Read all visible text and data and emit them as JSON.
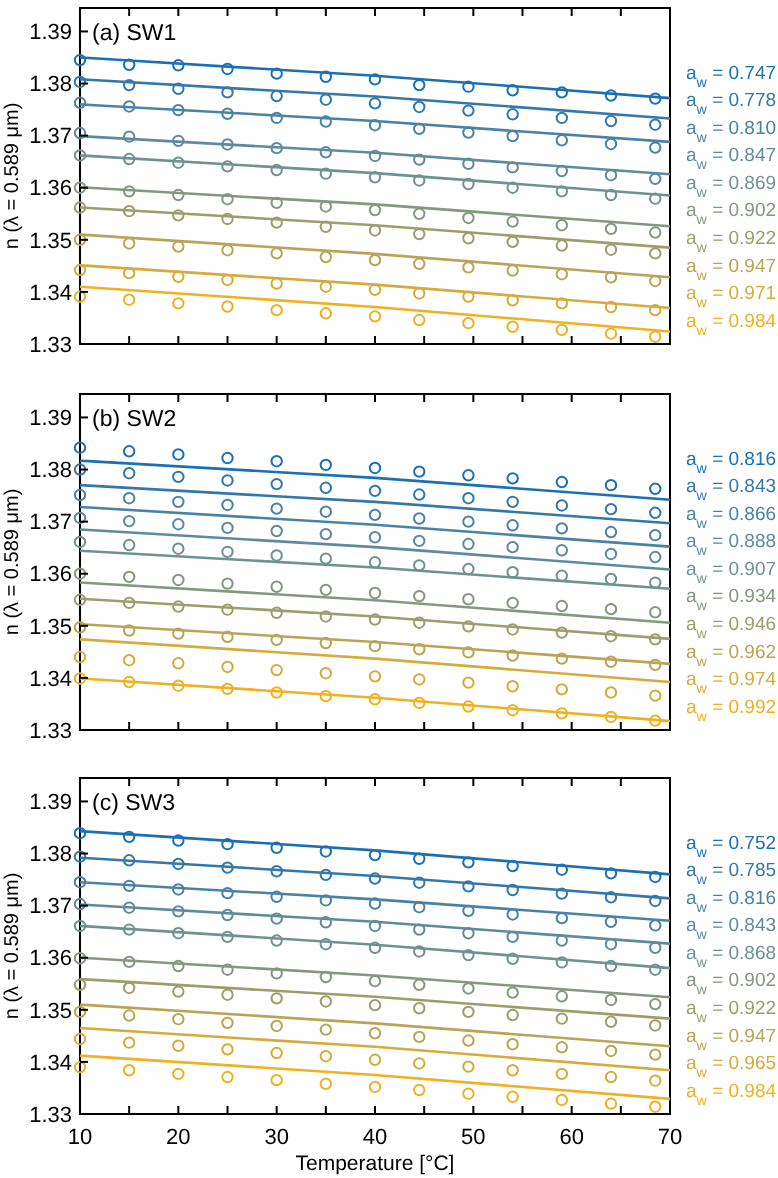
{
  "chart_data": [
    {
      "type": "line",
      "title": "(a) SW1",
      "ylabel": "n (λ = 0.589 μm)",
      "xlim": [
        10,
        70
      ],
      "ylim": [
        1.33,
        1.3945
      ],
      "xticks": [
        10,
        {
          "value": 15,
          "label": null
        },
        20,
        {
          "value": 25,
          "label": null
        },
        30,
        {
          "value": 35,
          "label": null
        },
        40,
        {
          "value": 45,
          "label": null
        },
        50,
        {
          "value": 55,
          "label": null
        },
        60,
        {
          "value": 65,
          "label": null
        },
        70
      ],
      "yticks": [
        1.33,
        1.34,
        1.35,
        1.36,
        1.37,
        1.38,
        1.39
      ],
      "tick_labels": "y",
      "legend": "right",
      "x": [
        10,
        15,
        20,
        25,
        30,
        35,
        40,
        44.5,
        49.5,
        54,
        59,
        64,
        68.5
      ],
      "series": [
        {
          "name": "a$_{w}$ = 0.747",
          "color": "#1a70b5",
          "x": [
            10,
            40,
            70
          ],
          "values": [
            1.385,
            1.3815,
            1.3772
          ]
        },
        {
          "name": "a$_{w}$ = 0.778",
          "color": "#3278ad",
          "x": [
            10,
            40,
            70
          ],
          "values": [
            1.3808,
            1.3775,
            1.3733
          ]
        },
        {
          "name": "a$_{w}$ = 0.810",
          "color": "#4a82a5",
          "x": [
            10,
            40,
            70
          ],
          "values": [
            1.376,
            1.3728,
            1.3688
          ]
        },
        {
          "name": "a$_{w}$ = 0.847",
          "color": "#5f8a9b",
          "x": [
            10,
            40,
            70
          ],
          "values": [
            1.3699,
            1.3667,
            1.3626
          ]
        },
        {
          "name": "a$_{w}$ = 0.869",
          "color": "#6f9290",
          "x": [
            10,
            40,
            70
          ],
          "values": [
            1.3662,
            1.3628,
            1.3585
          ]
        },
        {
          "name": "a$_{w}$ = 0.902",
          "color": "#84987f",
          "x": [
            10,
            40,
            70
          ],
          "values": [
            1.3601,
            1.3568,
            1.3526
          ]
        },
        {
          "name": "a$_{w}$ = 0.922",
          "color": "#9c9d6b",
          "x": [
            10,
            40,
            70
          ],
          "values": [
            1.3562,
            1.3528,
            1.3485
          ]
        },
        {
          "name": "a$_{w}$ = 0.947",
          "color": "#b9a455",
          "x": [
            10,
            40,
            70
          ],
          "values": [
            1.351,
            1.3473,
            1.3428
          ]
        },
        {
          "name": "a$_{w}$ = 0.971",
          "color": "#d6ab3c",
          "x": [
            10,
            40,
            70
          ],
          "values": [
            1.3451,
            1.3414,
            1.3369
          ]
        },
        {
          "name": "a$_{w}$ = 0.984",
          "color": "#f0b020",
          "x": [
            10,
            40,
            70
          ],
          "values": [
            1.341,
            1.3371,
            1.3324
          ]
        },
        {
          "type": "scatter",
          "marker": "circle",
          "color": "#1a70b5",
          "values": [
            1.3845,
            1.3836,
            1.3835,
            1.3828,
            1.3819,
            1.3813,
            1.3808,
            1.3797,
            1.3794,
            1.3787,
            1.3783,
            1.3777,
            1.3771
          ]
        },
        {
          "type": "scatter",
          "marker": "circle",
          "color": "#3278ad",
          "values": [
            1.3803,
            1.3797,
            1.379,
            1.3783,
            1.3776,
            1.3769,
            1.3762,
            1.3755,
            1.3748,
            1.3741,
            1.3734,
            1.3728,
            1.3721
          ]
        },
        {
          "type": "scatter",
          "marker": "circle",
          "color": "#4a82a5",
          "values": [
            1.3763,
            1.3756,
            1.3749,
            1.3742,
            1.3734,
            1.3727,
            1.372,
            1.3713,
            1.3706,
            1.3699,
            1.3691,
            1.3684,
            1.3677
          ]
        },
        {
          "type": "scatter",
          "marker": "circle",
          "color": "#5f8a9b",
          "values": [
            1.3705,
            1.3698,
            1.369,
            1.3683,
            1.3676,
            1.3668,
            1.3661,
            1.3654,
            1.3646,
            1.3639,
            1.3632,
            1.3624,
            1.3617
          ]
        },
        {
          "type": "scatter",
          "marker": "circle",
          "color": "#6f9290",
          "values": [
            1.3662,
            1.3655,
            1.3648,
            1.3641,
            1.3634,
            1.3627,
            1.362,
            1.3614,
            1.3607,
            1.36,
            1.3593,
            1.3586,
            1.3579
          ]
        },
        {
          "type": "scatter",
          "marker": "circle",
          "color": "#84987f",
          "values": [
            1.36,
            1.3593,
            1.3586,
            1.3578,
            1.3571,
            1.3564,
            1.3557,
            1.355,
            1.3542,
            1.3535,
            1.3528,
            1.3521,
            1.3514
          ]
        },
        {
          "type": "scatter",
          "marker": "circle",
          "color": "#9c9d6b",
          "values": [
            1.3562,
            1.3555,
            1.3547,
            1.354,
            1.3533,
            1.3525,
            1.3518,
            1.3511,
            1.3503,
            1.3496,
            1.3489,
            1.3481,
            1.3474
          ]
        },
        {
          "type": "scatter",
          "marker": "circle",
          "color": "#b9a455",
          "values": [
            1.35,
            1.3493,
            1.3487,
            1.348,
            1.3474,
            1.3467,
            1.3461,
            1.3454,
            1.3447,
            1.3441,
            1.3434,
            1.3428,
            1.3421
          ]
        },
        {
          "type": "scatter",
          "marker": "circle",
          "color": "#d6ab3c",
          "values": [
            1.3442,
            1.3436,
            1.3429,
            1.3423,
            1.3416,
            1.341,
            1.3404,
            1.3397,
            1.3391,
            1.3384,
            1.3378,
            1.3371,
            1.3365
          ]
        },
        {
          "type": "scatter",
          "marker": "circle",
          "color": "#f0b020",
          "values": [
            1.3391,
            1.3385,
            1.3378,
            1.3372,
            1.3365,
            1.3359,
            1.3353,
            1.3346,
            1.334,
            1.3333,
            1.3327,
            1.332,
            1.3314
          ]
        }
      ]
    },
    {
      "type": "line",
      "title": "(b) SW2",
      "ylabel": "n (λ = 0.589 μm)",
      "xlim": [
        10,
        70
      ],
      "ylim": [
        1.33,
        1.3945
      ],
      "xticks": [
        10,
        {
          "value": 15,
          "label": null
        },
        20,
        {
          "value": 25,
          "label": null
        },
        30,
        {
          "value": 35,
          "label": null
        },
        40,
        {
          "value": 45,
          "label": null
        },
        50,
        {
          "value": 55,
          "label": null
        },
        60,
        {
          "value": 65,
          "label": null
        },
        70
      ],
      "yticks": [
        1.33,
        1.34,
        1.35,
        1.36,
        1.37,
        1.38,
        1.39
      ],
      "tick_labels": "y",
      "legend": "right",
      "x": [
        10,
        15,
        20,
        25,
        30,
        35,
        40,
        44.5,
        49.5,
        54,
        59,
        64,
        68.5
      ],
      "series": [
        {
          "name": "a$_{w}$ = 0.816",
          "color": "#1a70b5",
          "x": [
            10,
            40,
            70
          ],
          "values": [
            1.3817,
            1.3784,
            1.3742
          ]
        },
        {
          "name": "a$_{w}$ = 0.843",
          "color": "#3278ad",
          "x": [
            10,
            40,
            70
          ],
          "values": [
            1.377,
            1.3738,
            1.3697
          ]
        },
        {
          "name": "a$_{w}$ = 0.866",
          "color": "#4a82a5",
          "x": [
            10,
            40,
            70
          ],
          "values": [
            1.3728,
            1.3694,
            1.3652
          ]
        },
        {
          "name": "a$_{w}$ = 0.888",
          "color": "#5f8a9b",
          "x": [
            10,
            40,
            70
          ],
          "values": [
            1.3685,
            1.3651,
            1.3608
          ]
        },
        {
          "name": "a$_{w}$ = 0.907",
          "color": "#6f9290",
          "x": [
            10,
            40,
            70
          ],
          "values": [
            1.3644,
            1.3612,
            1.3571
          ]
        },
        {
          "name": "a$_{w}$ = 0.934",
          "color": "#84987f",
          "x": [
            10,
            40,
            70
          ],
          "values": [
            1.3583,
            1.3549,
            1.3506
          ]
        },
        {
          "name": "a$_{w}$ = 0.946",
          "color": "#9c9d6b",
          "x": [
            10,
            40,
            70
          ],
          "values": [
            1.3552,
            1.3518,
            1.3475
          ]
        },
        {
          "name": "a$_{w}$ = 0.962",
          "color": "#b9a455",
          "x": [
            10,
            40,
            70
          ],
          "values": [
            1.3503,
            1.3469,
            1.3427
          ]
        },
        {
          "name": "a$_{w}$ = 0.974",
          "color": "#d6ab3c",
          "x": [
            10,
            40,
            70
          ],
          "values": [
            1.3474,
            1.3437,
            1.3392
          ]
        },
        {
          "name": "a$_{w}$ = 0.992",
          "color": "#f0b020",
          "x": [
            10,
            40,
            70
          ],
          "values": [
            1.3399,
            1.3362,
            1.3317
          ]
        },
        {
          "type": "scatter",
          "marker": "circle",
          "color": "#1a70b5",
          "values": [
            1.3842,
            1.3835,
            1.3829,
            1.3822,
            1.3816,
            1.3809,
            1.3803,
            1.3796,
            1.3789,
            1.3783,
            1.3776,
            1.377,
            1.3763
          ]
        },
        {
          "type": "scatter",
          "marker": "circle",
          "color": "#3278ad",
          "values": [
            1.38,
            1.3793,
            1.3786,
            1.3779,
            1.3772,
            1.3765,
            1.3759,
            1.3752,
            1.3745,
            1.3738,
            1.3731,
            1.3724,
            1.3717
          ]
        },
        {
          "type": "scatter",
          "marker": "circle",
          "color": "#4a82a5",
          "values": [
            1.3751,
            1.3745,
            1.3738,
            1.3732,
            1.3725,
            1.3719,
            1.3713,
            1.3706,
            1.37,
            1.3693,
            1.3687,
            1.368,
            1.3674
          ]
        },
        {
          "type": "scatter",
          "marker": "circle",
          "color": "#5f8a9b",
          "values": [
            1.3707,
            1.3701,
            1.3695,
            1.3688,
            1.3682,
            1.3676,
            1.367,
            1.3663,
            1.3657,
            1.3651,
            1.3645,
            1.3638,
            1.3632
          ]
        },
        {
          "type": "scatter",
          "marker": "circle",
          "color": "#6f9290",
          "values": [
            1.3661,
            1.3655,
            1.3648,
            1.3642,
            1.3635,
            1.3629,
            1.3622,
            1.3616,
            1.3609,
            1.3603,
            1.3596,
            1.359,
            1.3583
          ]
        },
        {
          "type": "scatter",
          "marker": "circle",
          "color": "#84987f",
          "values": [
            1.36,
            1.3594,
            1.3588,
            1.3581,
            1.3575,
            1.3569,
            1.3563,
            1.3557,
            1.3551,
            1.3544,
            1.3538,
            1.3532,
            1.3526
          ]
        },
        {
          "type": "scatter",
          "marker": "circle",
          "color": "#9c9d6b",
          "values": [
            1.355,
            1.3544,
            1.3537,
            1.3531,
            1.3525,
            1.3518,
            1.3512,
            1.3506,
            1.3499,
            1.3493,
            1.3487,
            1.348,
            1.3474
          ]
        },
        {
          "type": "scatter",
          "marker": "circle",
          "color": "#b9a455",
          "values": [
            1.3497,
            1.3491,
            1.3485,
            1.3479,
            1.3473,
            1.3467,
            1.3461,
            1.3455,
            1.3449,
            1.3443,
            1.3437,
            1.3431,
            1.3425
          ]
        },
        {
          "type": "scatter",
          "marker": "circle",
          "color": "#d6ab3c",
          "values": [
            1.344,
            1.3434,
            1.3428,
            1.3421,
            1.3415,
            1.3409,
            1.3403,
            1.3397,
            1.3391,
            1.3384,
            1.3378,
            1.3372,
            1.3366
          ]
        },
        {
          "type": "scatter",
          "marker": "circle",
          "color": "#f0b020",
          "values": [
            1.3399,
            1.3392,
            1.3385,
            1.3379,
            1.3372,
            1.3365,
            1.3359,
            1.3352,
            1.3345,
            1.3338,
            1.3332,
            1.3325,
            1.3318
          ]
        }
      ]
    },
    {
      "type": "line",
      "title": "(c) SW3",
      "xlabel": "Temperature [°C]",
      "ylabel": "n (λ = 0.589 μm)",
      "xlim": [
        10,
        70
      ],
      "ylim": [
        1.33,
        1.3945
      ],
      "xticks": [
        10,
        {
          "value": 15,
          "label": null
        },
        20,
        {
          "value": 25,
          "label": null
        },
        30,
        {
          "value": 35,
          "label": null
        },
        40,
        {
          "value": 45,
          "label": null
        },
        50,
        {
          "value": 55,
          "label": null
        },
        60,
        {
          "value": 65,
          "label": null
        },
        70
      ],
      "yticks": [
        1.33,
        1.34,
        1.35,
        1.36,
        1.37,
        1.38,
        1.39
      ],
      "legend": "right",
      "x": [
        10,
        15,
        20,
        25,
        30,
        35,
        40,
        44.5,
        49.5,
        54,
        59,
        64,
        68.5
      ],
      "series": [
        {
          "name": "a$_{w}$ = 0.752",
          "color": "#1a70b5",
          "x": [
            10,
            40,
            70
          ],
          "values": [
            1.3843,
            1.3806,
            1.376
          ]
        },
        {
          "name": "a$_{w}$ = 0.785",
          "color": "#3278ad",
          "x": [
            10,
            40,
            70
          ],
          "values": [
            1.3792,
            1.3757,
            1.3714
          ]
        },
        {
          "name": "a$_{w}$ = 0.816",
          "color": "#4a82a5",
          "x": [
            10,
            40,
            70
          ],
          "values": [
            1.3745,
            1.3712,
            1.3671
          ]
        },
        {
          "name": "a$_{w}$ = 0.843",
          "color": "#5f8a9b",
          "x": [
            10,
            40,
            70
          ],
          "values": [
            1.3702,
            1.3669,
            1.3627
          ]
        },
        {
          "name": "a$_{w}$ = 0.868",
          "color": "#6f9290",
          "x": [
            10,
            40,
            70
          ],
          "values": [
            1.3661,
            1.3625,
            1.358
          ]
        },
        {
          "name": "a$_{w}$ = 0.902",
          "color": "#84987f",
          "x": [
            10,
            40,
            70
          ],
          "values": [
            1.36,
            1.3566,
            1.3524
          ]
        },
        {
          "name": "a$_{w}$ = 0.922",
          "color": "#9c9d6b",
          "x": [
            10,
            40,
            70
          ],
          "values": [
            1.3559,
            1.3525,
            1.3483
          ]
        },
        {
          "name": "a$_{w}$ = 0.947",
          "color": "#b9a455",
          "x": [
            10,
            40,
            70
          ],
          "values": [
            1.351,
            1.3474,
            1.343
          ]
        },
        {
          "name": "a$_{w}$ = 0.965",
          "color": "#d6ab3c",
          "x": [
            10,
            40,
            70
          ],
          "values": [
            1.3465,
            1.3429,
            1.3384
          ]
        },
        {
          "name": "a$_{w}$ = 0.984",
          "color": "#f0b020",
          "x": [
            10,
            40,
            70
          ],
          "values": [
            1.3412,
            1.3375,
            1.3329
          ]
        },
        {
          "type": "scatter",
          "marker": "circle",
          "color": "#1a70b5",
          "values": [
            1.3839,
            1.3832,
            1.3825,
            1.3818,
            1.3811,
            1.3804,
            1.3797,
            1.379,
            1.3783,
            1.3776,
            1.3769,
            1.3762,
            1.3755
          ]
        },
        {
          "type": "scatter",
          "marker": "circle",
          "color": "#3278ad",
          "values": [
            1.3794,
            1.3787,
            1.378,
            1.3773,
            1.3766,
            1.3759,
            1.3752,
            1.3744,
            1.3737,
            1.373,
            1.3723,
            1.3716,
            1.3709
          ]
        },
        {
          "type": "scatter",
          "marker": "circle",
          "color": "#4a82a5",
          "values": [
            1.3745,
            1.3738,
            1.3731,
            1.3724,
            1.3717,
            1.371,
            1.3704,
            1.3697,
            1.369,
            1.3683,
            1.3676,
            1.3669,
            1.3662
          ]
        },
        {
          "type": "scatter",
          "marker": "circle",
          "color": "#5f8a9b",
          "values": [
            1.3703,
            1.3696,
            1.3689,
            1.3682,
            1.3675,
            1.3668,
            1.3661,
            1.3654,
            1.3647,
            1.364,
            1.3633,
            1.3626,
            1.3619
          ]
        },
        {
          "type": "scatter",
          "marker": "circle",
          "color": "#6f9290",
          "values": [
            1.3661,
            1.3654,
            1.3647,
            1.364,
            1.3633,
            1.3626,
            1.3619,
            1.3612,
            1.3605,
            1.3598,
            1.3591,
            1.3584,
            1.3577
          ]
        },
        {
          "type": "scatter",
          "marker": "circle",
          "color": "#84987f",
          "values": [
            1.3599,
            1.3592,
            1.3584,
            1.3577,
            1.357,
            1.3563,
            1.3555,
            1.3548,
            1.3541,
            1.3533,
            1.3526,
            1.3519,
            1.3511
          ]
        },
        {
          "type": "scatter",
          "marker": "circle",
          "color": "#9c9d6b",
          "values": [
            1.3548,
            1.3542,
            1.3535,
            1.3529,
            1.3522,
            1.3516,
            1.3509,
            1.3503,
            1.3496,
            1.349,
            1.3483,
            1.3477,
            1.347
          ]
        },
        {
          "type": "scatter",
          "marker": "circle",
          "color": "#b9a455",
          "values": [
            1.3496,
            1.3489,
            1.3482,
            1.3475,
            1.3469,
            1.3462,
            1.3455,
            1.3448,
            1.3441,
            1.3434,
            1.3428,
            1.3421,
            1.3414
          ]
        },
        {
          "type": "scatter",
          "marker": "circle",
          "color": "#d6ab3c",
          "values": [
            1.3444,
            1.3437,
            1.3431,
            1.3424,
            1.3417,
            1.3411,
            1.3404,
            1.3397,
            1.3391,
            1.3384,
            1.3377,
            1.3371,
            1.3364
          ]
        },
        {
          "type": "scatter",
          "marker": "circle",
          "color": "#f0b020",
          "values": [
            1.339,
            1.3384,
            1.3377,
            1.3371,
            1.3365,
            1.3358,
            1.3352,
            1.3346,
            1.3339,
            1.3333,
            1.3327,
            1.332,
            1.3314
          ]
        }
      ]
    }
  ]
}
